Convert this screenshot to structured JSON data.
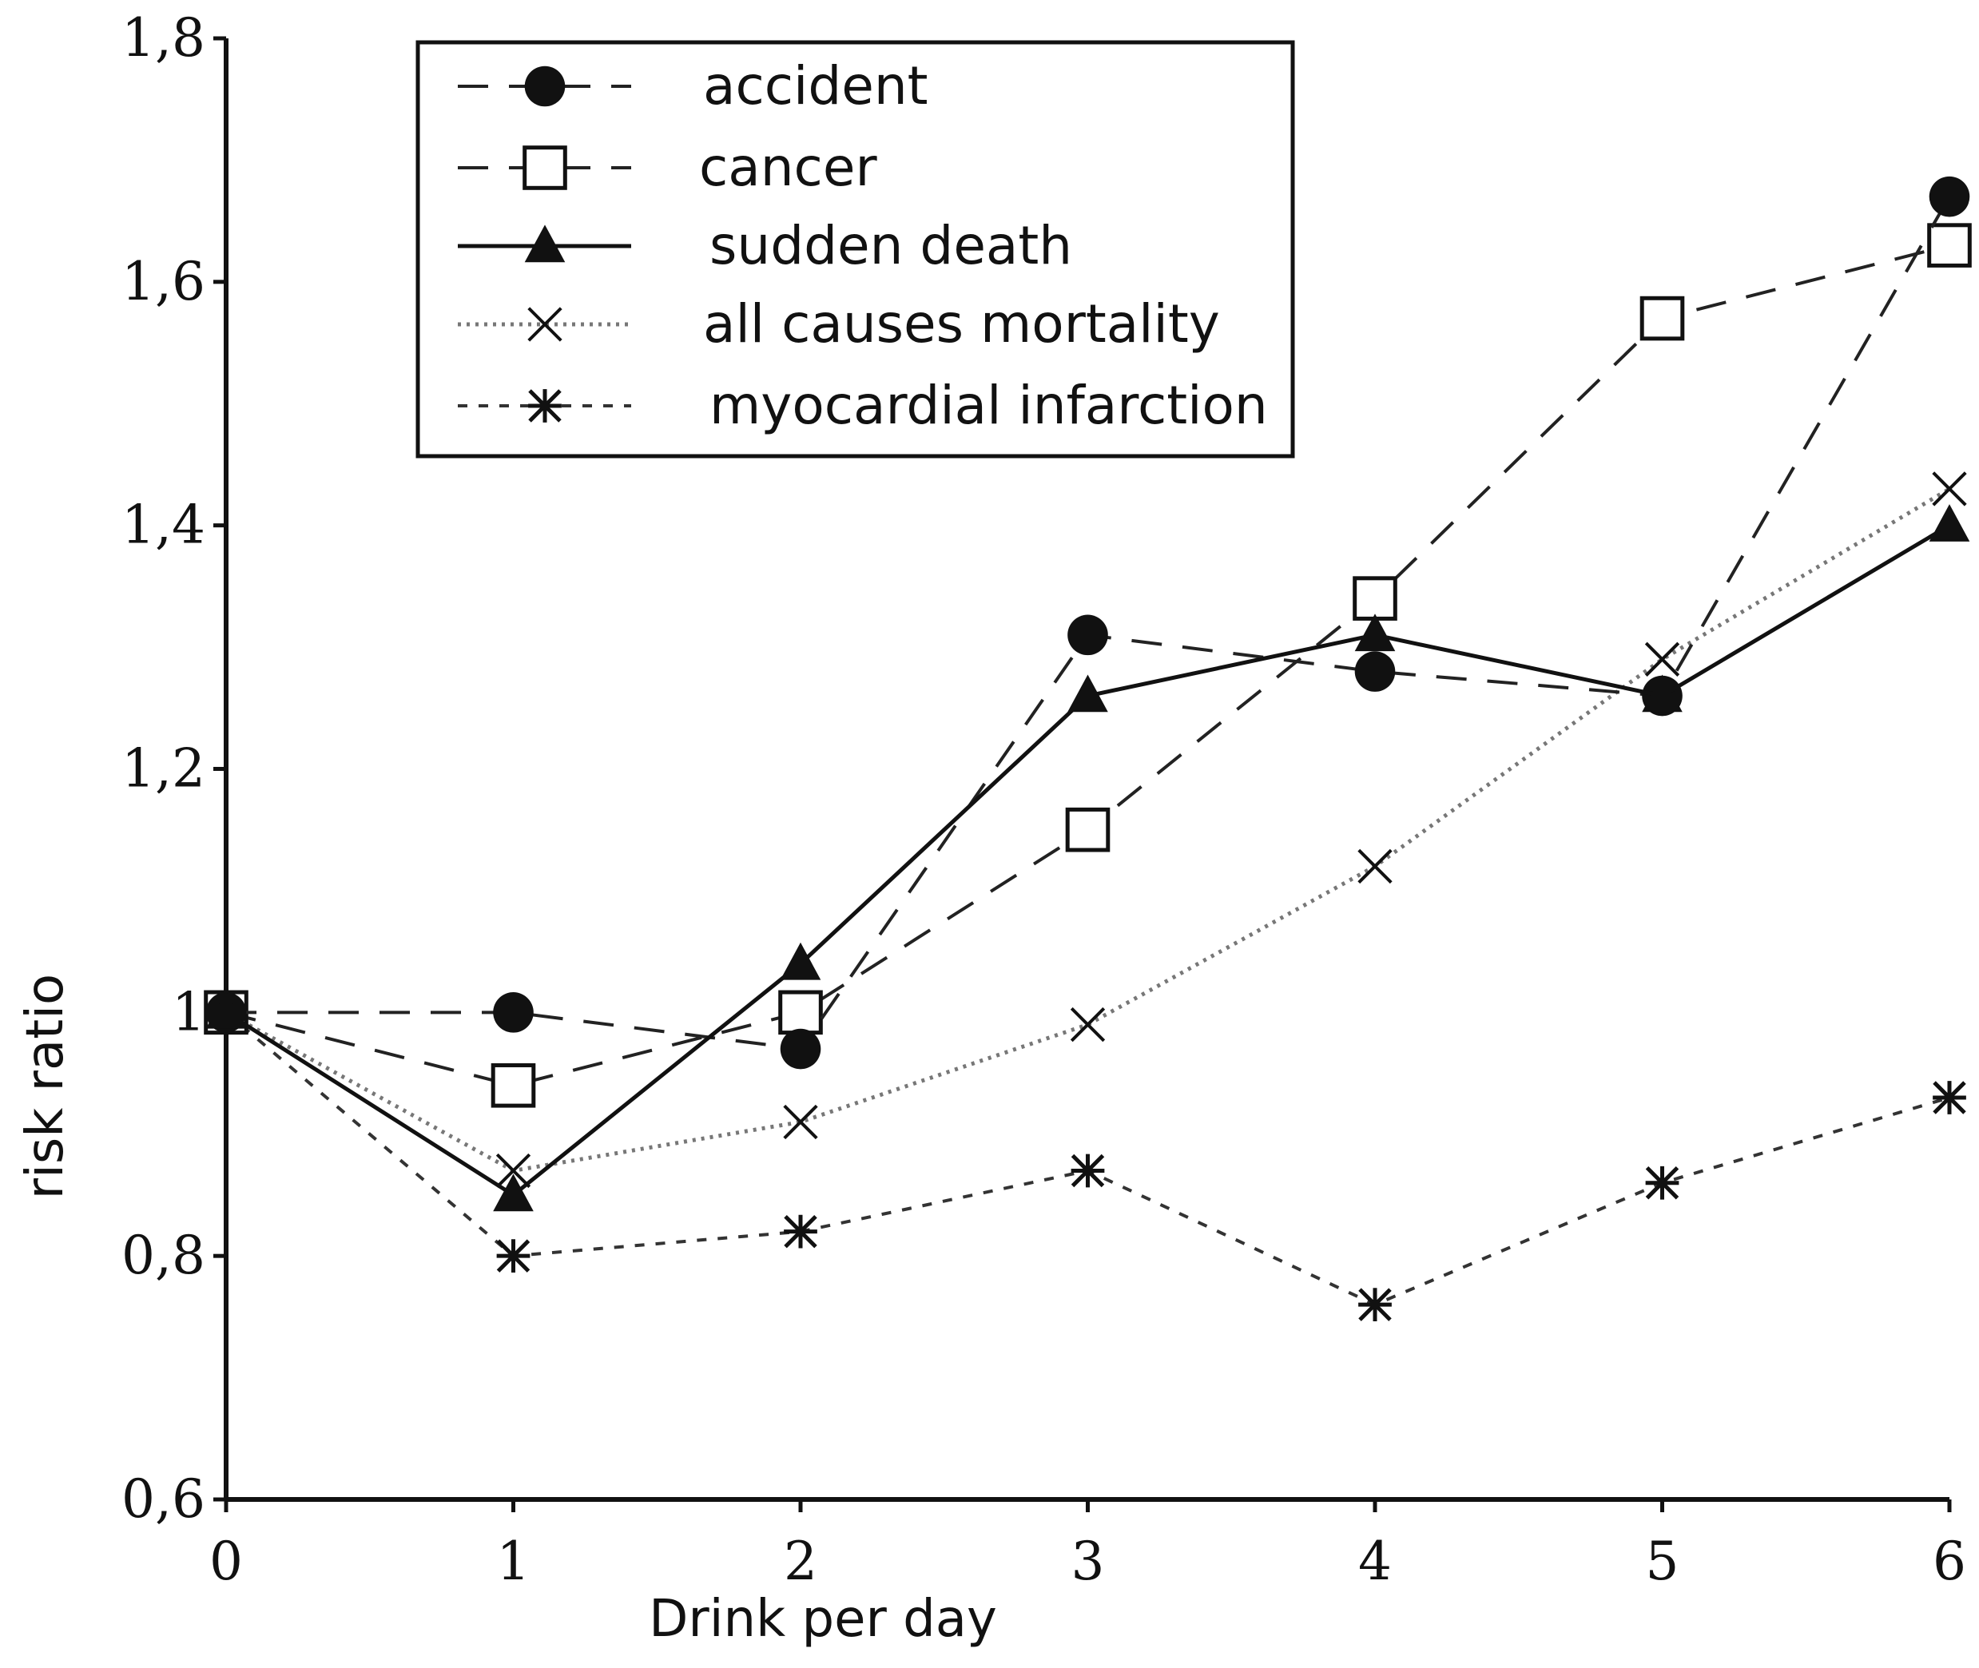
{
  "chart_data": {
    "type": "line",
    "title": "",
    "xlabel": "Drink per day",
    "ylabel": "risk ratio",
    "xlim": [
      0,
      6
    ],
    "ylim": [
      0.6,
      1.8
    ],
    "x_ticks": [
      "0",
      "1",
      "2",
      "3",
      "4",
      "5",
      "6"
    ],
    "y_ticks": [
      "0,6",
      "0,8",
      "1",
      "1,2",
      "1,4",
      "1,6",
      "1,8"
    ],
    "grid": false,
    "legend_position": "top-left",
    "x": [
      0,
      1,
      2,
      3,
      4,
      5,
      6
    ],
    "series": [
      {
        "name": "accident",
        "marker": "filled-circle",
        "line": "dashed",
        "values": [
          1.0,
          1.0,
          0.97,
          1.31,
          1.28,
          1.26,
          1.67
        ]
      },
      {
        "name": "cancer",
        "marker": "open-square",
        "line": "dashed",
        "values": [
          1.0,
          0.94,
          1.0,
          1.15,
          1.34,
          1.57,
          1.63
        ]
      },
      {
        "name": "sudden death",
        "marker": "filled-triangle",
        "line": "solid",
        "values": [
          1.0,
          0.85,
          1.04,
          1.26,
          1.31,
          1.26,
          1.4
        ]
      },
      {
        "name": "all causes mortality",
        "marker": "x",
        "line": "dotted",
        "values": [
          1.0,
          0.87,
          0.91,
          0.99,
          1.12,
          1.29,
          1.43
        ]
      },
      {
        "name": "myocardial infarction",
        "marker": "asterisk",
        "line": "short-dashed",
        "values": [
          1.0,
          0.8,
          0.82,
          0.87,
          0.76,
          0.86,
          0.93
        ]
      }
    ]
  }
}
